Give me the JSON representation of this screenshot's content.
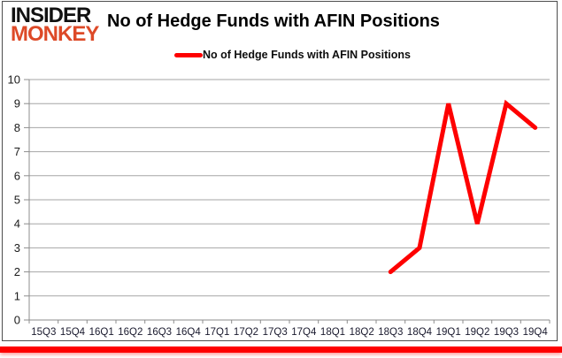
{
  "logo": {
    "line1": "INSIDER",
    "line2": "MONKEY",
    "accent_color": "#dd4a28"
  },
  "header": {
    "title": "No of Hedge Funds with AFIN Positions"
  },
  "legend": {
    "label": "No of Hedge Funds with AFIN Positions"
  },
  "colors": {
    "line": "#fe0000",
    "grid": "#a6a6a6",
    "axis": "#8c8c8c",
    "bottom_bar": "#fe0000",
    "frame_border": "#4d4d4d"
  },
  "chart_data": {
    "type": "line",
    "title": "No of Hedge Funds with AFIN Positions",
    "xlabel": "",
    "ylabel": "",
    "categories": [
      "15Q3",
      "15Q4",
      "16Q1",
      "16Q2",
      "16Q3",
      "16Q4",
      "17Q1",
      "17Q2",
      "17Q3",
      "17Q4",
      "18Q1",
      "18Q2",
      "18Q3",
      "18Q4",
      "19Q1",
      "19Q2",
      "19Q3",
      "19Q4"
    ],
    "series": [
      {
        "name": "No of Hedge Funds with AFIN Positions",
        "values": [
          null,
          null,
          null,
          null,
          null,
          null,
          null,
          null,
          null,
          null,
          null,
          null,
          2,
          3,
          9,
          4,
          9,
          8
        ]
      }
    ],
    "ylim": [
      0,
      10
    ],
    "ytick": 1,
    "grid": true,
    "legend_position": "top-center"
  }
}
